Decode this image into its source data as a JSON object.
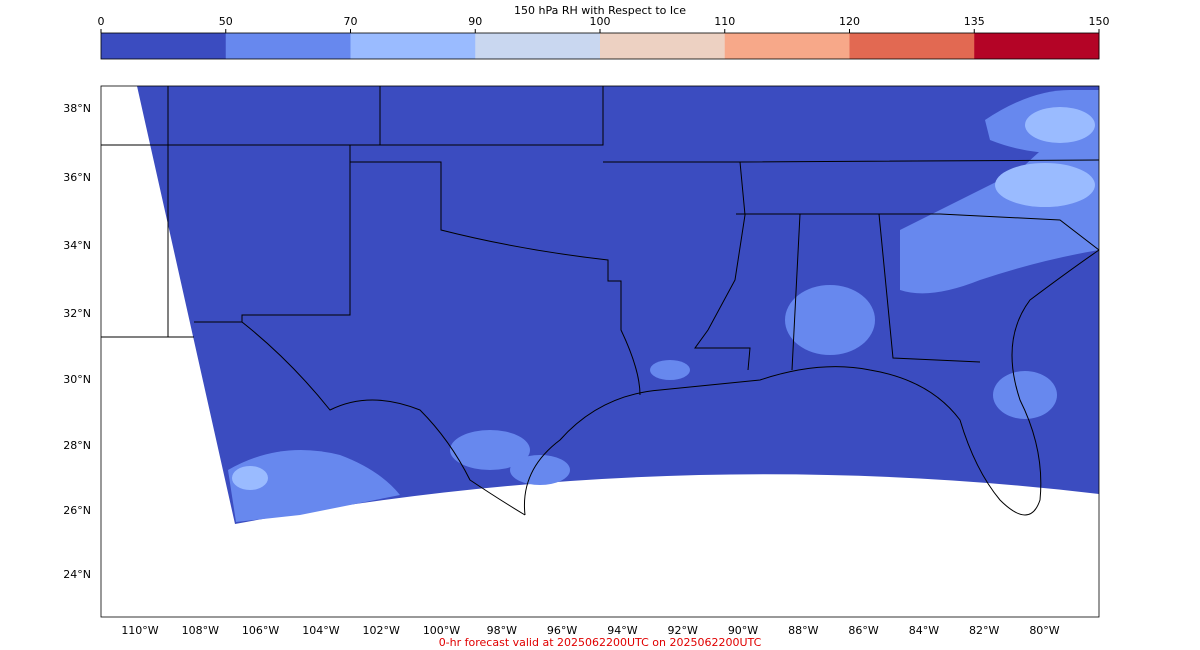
{
  "colorbar": {
    "title": "150 hPa RH with Respect to Ice",
    "ticks": [
      0,
      50,
      70,
      90,
      100,
      110,
      120,
      135,
      150
    ],
    "colors": [
      "#3b4cc0",
      "#6788ee",
      "#9abbff",
      "#c9d7f0",
      "#edd1c2",
      "#f7a889",
      "#e26952",
      "#b40426"
    ]
  },
  "map": {
    "lat_labels": [
      "38°N",
      "36°N",
      "34°N",
      "32°N",
      "30°N",
      "28°N",
      "26°N",
      "24°N"
    ],
    "lon_labels": [
      "110°W",
      "108°W",
      "106°W",
      "104°W",
      "102°W",
      "100°W",
      "98°W",
      "96°W",
      "94°W",
      "92°W",
      "90°W",
      "88°W",
      "86°W",
      "84°W",
      "82°W",
      "80°W"
    ],
    "footer": "0-hr forecast valid at 2025062200UTC on 2025062200UTC"
  }
}
